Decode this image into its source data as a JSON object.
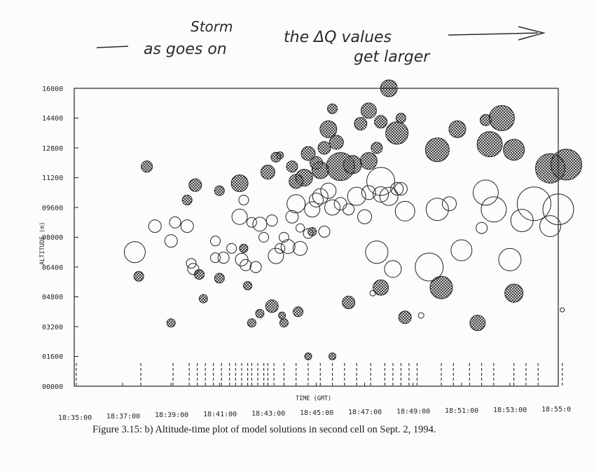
{
  "annotation": {
    "line1_top": "Storm",
    "line1": "as goes on",
    "line1_right": "the ΔQ values",
    "line2": "get larger"
  },
  "caption": "Figure 3.15: b) Altitude-time plot of model solutions in second cell on Sept. 2, 1994.",
  "colors": {
    "ink": "#222222",
    "background": "#fbfdfc"
  },
  "chart_data": {
    "type": "scatter",
    "xlabel": "TIME (GMT)",
    "ylabel": "ALTITUDE (m)",
    "x_axis_type": "time",
    "xlim": [
      "18:35:00",
      "18:55:00"
    ],
    "ylim": [
      0,
      16000
    ],
    "x_ticks": [
      "18:35:00",
      "18:37:00",
      "18:39:00",
      "18:41:00",
      "18:43:00",
      "18:45:00",
      "18:47:00",
      "18:49:00",
      "18:51:00",
      "18:53:00",
      "18:55:0"
    ],
    "y_ticks": [
      "00000",
      "01600",
      "03200",
      "04800",
      "06400",
      "08000",
      "09600",
      "11200",
      "12800",
      "14400",
      "16000"
    ],
    "grid": false,
    "series": [
      {
        "style": "open",
        "points": [
          {
            "t": "18:37:30",
            "alt": 7200,
            "r": 15
          },
          {
            "t": "18:38:20",
            "alt": 8600,
            "r": 9
          },
          {
            "t": "18:39:00",
            "alt": 7800,
            "r": 9
          },
          {
            "t": "18:39:10",
            "alt": 8800,
            "r": 8
          },
          {
            "t": "18:39:40",
            "alt": 8600,
            "r": 9
          },
          {
            "t": "18:39:50",
            "alt": 6600,
            "r": 7
          },
          {
            "t": "18:39:55",
            "alt": 6300,
            "r": 8
          },
          {
            "t": "18:40:50",
            "alt": 6900,
            "r": 7
          },
          {
            "t": "18:40:50",
            "alt": 7800,
            "r": 7
          },
          {
            "t": "18:41:10",
            "alt": 6900,
            "r": 8
          },
          {
            "t": "18:41:30",
            "alt": 7400,
            "r": 7
          },
          {
            "t": "18:41:55",
            "alt": 6800,
            "r": 9
          },
          {
            "t": "18:41:50",
            "alt": 9100,
            "r": 11
          },
          {
            "t": "18:42:00",
            "alt": 10000,
            "r": 7
          },
          {
            "t": "18:42:05",
            "alt": 6500,
            "r": 8
          },
          {
            "t": "18:42:20",
            "alt": 8800,
            "r": 7
          },
          {
            "t": "18:42:30",
            "alt": 6400,
            "r": 8
          },
          {
            "t": "18:42:40",
            "alt": 8700,
            "r": 10
          },
          {
            "t": "18:42:50",
            "alt": 8000,
            "r": 7
          },
          {
            "t": "18:43:10",
            "alt": 8900,
            "r": 8
          },
          {
            "t": "18:43:20",
            "alt": 7000,
            "r": 11
          },
          {
            "t": "18:43:30",
            "alt": 7400,
            "r": 7
          },
          {
            "t": "18:43:40",
            "alt": 8000,
            "r": 7
          },
          {
            "t": "18:43:50",
            "alt": 7500,
            "r": 10
          },
          {
            "t": "18:44:00",
            "alt": 9100,
            "r": 9
          },
          {
            "t": "18:44:10",
            "alt": 9800,
            "r": 13
          },
          {
            "t": "18:44:20",
            "alt": 7400,
            "r": 10
          },
          {
            "t": "18:44:20",
            "alt": 8500,
            "r": 6
          },
          {
            "t": "18:44:40",
            "alt": 8200,
            "r": 7
          },
          {
            "t": "18:44:50",
            "alt": 9500,
            "r": 11
          },
          {
            "t": "18:45:00",
            "alt": 10000,
            "r": 10
          },
          {
            "t": "18:45:10",
            "alt": 10200,
            "r": 11
          },
          {
            "t": "18:45:20",
            "alt": 8300,
            "r": 8
          },
          {
            "t": "18:45:30",
            "alt": 10500,
            "r": 11
          },
          {
            "t": "18:45:40",
            "alt": 9600,
            "r": 11
          },
          {
            "t": "18:46:00",
            "alt": 9800,
            "r": 9
          },
          {
            "t": "18:46:20",
            "alt": 9500,
            "r": 8
          },
          {
            "t": "18:46:40",
            "alt": 10200,
            "r": 13
          },
          {
            "t": "18:47:00",
            "alt": 9100,
            "r": 10
          },
          {
            "t": "18:47:10",
            "alt": 10400,
            "r": 10
          },
          {
            "t": "18:47:30",
            "alt": 7200,
            "r": 16
          },
          {
            "t": "18:47:40",
            "alt": 10300,
            "r": 11
          },
          {
            "t": "18:48:00",
            "alt": 10200,
            "r": 13
          },
          {
            "t": "18:48:10",
            "alt": 6300,
            "r": 12
          },
          {
            "t": "18:48:20",
            "alt": 10600,
            "r": 9
          },
          {
            "t": "18:48:30",
            "alt": 10600,
            "r": 9
          },
          {
            "t": "18:48:40",
            "alt": 9400,
            "r": 14
          },
          {
            "t": "18:49:40",
            "alt": 6400,
            "r": 20
          },
          {
            "t": "18:50:00",
            "alt": 9500,
            "r": 16
          },
          {
            "t": "18:50:30",
            "alt": 9800,
            "r": 10
          },
          {
            "t": "18:51:00",
            "alt": 7300,
            "r": 15
          },
          {
            "t": "18:51:50",
            "alt": 8500,
            "r": 8
          },
          {
            "t": "18:52:00",
            "alt": 10400,
            "r": 18
          },
          {
            "t": "18:52:20",
            "alt": 9500,
            "r": 18
          },
          {
            "t": "18:53:00",
            "alt": 6800,
            "r": 16
          },
          {
            "t": "18:53:30",
            "alt": 8900,
            "r": 16
          },
          {
            "t": "18:54:00",
            "alt": 9800,
            "r": 24
          },
          {
            "t": "18:54:40",
            "alt": 8600,
            "r": 15
          },
          {
            "t": "18:55:00",
            "alt": 9500,
            "r": 22
          },
          {
            "t": "18:47:20",
            "alt": 5000,
            "r": 4
          },
          {
            "t": "18:49:20",
            "alt": 3800,
            "r": 4
          },
          {
            "t": "18:55:10",
            "alt": 4100,
            "r": 3
          },
          {
            "t": "18:47:40",
            "alt": 11000,
            "r": 20
          }
        ]
      },
      {
        "style": "hatched",
        "points": [
          {
            "t": "18:38:00",
            "alt": 11800,
            "r": 8
          },
          {
            "t": "18:37:40",
            "alt": 5900,
            "r": 7
          },
          {
            "t": "18:39:40",
            "alt": 10000,
            "r": 7
          },
          {
            "t": "18:40:00",
            "alt": 10800,
            "r": 9
          },
          {
            "t": "18:40:10",
            "alt": 6000,
            "r": 7
          },
          {
            "t": "18:40:20",
            "alt": 4700,
            "r": 6
          },
          {
            "t": "18:39:00",
            "alt": 3400,
            "r": 6
          },
          {
            "t": "18:41:00",
            "alt": 10500,
            "r": 7
          },
          {
            "t": "18:41:00",
            "alt": 5800,
            "r": 7
          },
          {
            "t": "18:41:50",
            "alt": 10900,
            "r": 12
          },
          {
            "t": "18:42:10",
            "alt": 5400,
            "r": 6
          },
          {
            "t": "18:42:20",
            "alt": 3400,
            "r": 6
          },
          {
            "t": "18:42:40",
            "alt": 3900,
            "r": 6
          },
          {
            "t": "18:43:00",
            "alt": 11500,
            "r": 10
          },
          {
            "t": "18:43:10",
            "alt": 4300,
            "r": 9
          },
          {
            "t": "18:43:20",
            "alt": 12300,
            "r": 7
          },
          {
            "t": "18:43:30",
            "alt": 12400,
            "r": 5
          },
          {
            "t": "18:43:35",
            "alt": 3800,
            "r": 5
          },
          {
            "t": "18:43:40",
            "alt": 3400,
            "r": 6
          },
          {
            "t": "18:44:00",
            "alt": 11800,
            "r": 8
          },
          {
            "t": "18:44:10",
            "alt": 11000,
            "r": 10
          },
          {
            "t": "18:44:15",
            "alt": 4000,
            "r": 7
          },
          {
            "t": "18:44:30",
            "alt": 11200,
            "r": 12
          },
          {
            "t": "18:44:40",
            "alt": 12500,
            "r": 10
          },
          {
            "t": "18:45:00",
            "alt": 12000,
            "r": 9
          },
          {
            "t": "18:45:10",
            "alt": 11600,
            "r": 12
          },
          {
            "t": "18:45:20",
            "alt": 12800,
            "r": 9
          },
          {
            "t": "18:45:30",
            "alt": 13800,
            "r": 12
          },
          {
            "t": "18:45:40",
            "alt": 14900,
            "r": 7
          },
          {
            "t": "18:45:50",
            "alt": 13100,
            "r": 10
          },
          {
            "t": "18:46:00",
            "alt": 11800,
            "r": 20
          },
          {
            "t": "18:46:20",
            "alt": 4500,
            "r": 9
          },
          {
            "t": "18:46:30",
            "alt": 11900,
            "r": 13
          },
          {
            "t": "18:46:50",
            "alt": 14100,
            "r": 9
          },
          {
            "t": "18:47:10",
            "alt": 12100,
            "r": 12
          },
          {
            "t": "18:47:10",
            "alt": 14800,
            "r": 11
          },
          {
            "t": "18:47:30",
            "alt": 12800,
            "r": 8
          },
          {
            "t": "18:47:40",
            "alt": 5300,
            "r": 11
          },
          {
            "t": "18:47:40",
            "alt": 14200,
            "r": 9
          },
          {
            "t": "18:48:00",
            "alt": 16000,
            "r": 12
          },
          {
            "t": "18:48:20",
            "alt": 13600,
            "r": 16
          },
          {
            "t": "18:48:30",
            "alt": 14400,
            "r": 7
          },
          {
            "t": "18:48:40",
            "alt": 3700,
            "r": 9
          },
          {
            "t": "18:50:00",
            "alt": 12700,
            "r": 17
          },
          {
            "t": "18:50:10",
            "alt": 5300,
            "r": 16
          },
          {
            "t": "18:50:50",
            "alt": 13800,
            "r": 12
          },
          {
            "t": "18:51:40",
            "alt": 3400,
            "r": 11
          },
          {
            "t": "18:52:00",
            "alt": 14300,
            "r": 8
          },
          {
            "t": "18:52:10",
            "alt": 13000,
            "r": 18
          },
          {
            "t": "18:52:40",
            "alt": 14400,
            "r": 18
          },
          {
            "t": "18:53:10",
            "alt": 12700,
            "r": 15
          },
          {
            "t": "18:53:10",
            "alt": 5000,
            "r": 13
          },
          {
            "t": "18:54:40",
            "alt": 11700,
            "r": 21
          },
          {
            "t": "18:55:20",
            "alt": 11900,
            "r": 22
          },
          {
            "t": "18:44:40",
            "alt": 1600,
            "r": 5
          },
          {
            "t": "18:45:40",
            "alt": 1600,
            "r": 5
          },
          {
            "t": "18:44:50",
            "alt": 8300,
            "r": 6
          },
          {
            "t": "18:42:00",
            "alt": 7400,
            "r": 6
          }
        ]
      }
    ],
    "rug_times": [
      "18:35:05",
      "18:37:45",
      "18:39:05",
      "18:39:45",
      "18:40:05",
      "18:40:25",
      "18:40:45",
      "18:41:05",
      "18:41:25",
      "18:41:40",
      "18:41:55",
      "18:42:10",
      "18:42:20",
      "18:42:35",
      "18:42:50",
      "18:43:00",
      "18:43:15",
      "18:43:40",
      "18:44:10",
      "18:44:40",
      "18:45:10",
      "18:45:40",
      "18:46:10",
      "18:46:40",
      "18:47:15",
      "18:47:50",
      "18:48:10",
      "18:48:30",
      "18:48:50",
      "18:49:10",
      "18:50:10",
      "18:50:40",
      "18:51:20",
      "18:51:50",
      "18:52:20",
      "18:53:10",
      "18:53:40",
      "18:54:10",
      "18:55:10"
    ]
  }
}
